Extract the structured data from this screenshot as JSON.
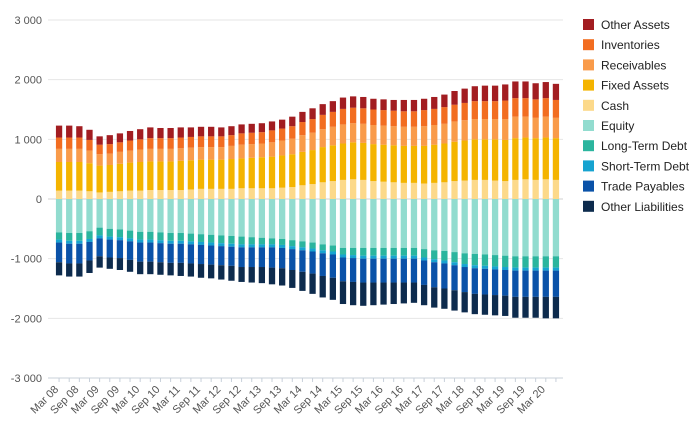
{
  "chart_data": {
    "type": "bar",
    "stacked": true,
    "title": "",
    "xlabel": "",
    "ylabel": "",
    "ylim": [
      -3000,
      3000
    ],
    "y_ticks": [
      3000,
      2000,
      1000,
      0,
      -1000,
      -2000,
      -3000
    ],
    "y_tick_labels": [
      "3 000",
      "2 000",
      "1 000",
      "0",
      "-1 000",
      "-2 000",
      "-3 000"
    ],
    "grid": "horizontal",
    "legend_position": "right",
    "categories": [
      "Mar 08",
      "Jun 08",
      "Sep 08",
      "Dec 08",
      "Mar 09",
      "Jun 09",
      "Sep 09",
      "Dec 09",
      "Mar 10",
      "Jun 10",
      "Sep 10",
      "Dec 10",
      "Mar 11",
      "Jun 11",
      "Sep 11",
      "Dec 11",
      "Mar 12",
      "Jun 12",
      "Sep 12",
      "Dec 12",
      "Mar 13",
      "Jun 13",
      "Sep 13",
      "Dec 13",
      "Mar 14",
      "Jun 14",
      "Sep 14",
      "Dec 14",
      "Mar 15",
      "Jun 15",
      "Sep 15",
      "Dec 15",
      "Mar 16",
      "Jun 16",
      "Sep 16",
      "Dec 16",
      "Mar 17",
      "Jun 17",
      "Sep 17",
      "Dec 17",
      "Mar 18",
      "Jun 18",
      "Sep 18",
      "Dec 18",
      "Mar 19",
      "Jun 19",
      "Sep 19",
      "Dec 19",
      "Mar 20",
      "Jun 20"
    ],
    "x_tick_labels": [
      "Mar 08",
      "Sep 08",
      "Mar 09",
      "Sep 09",
      "Mar 10",
      "Sep 10",
      "Mar 11",
      "Sep 11",
      "Mar 12",
      "Sep 12",
      "Mar 13",
      "Sep 13",
      "Mar 14",
      "Sep 14",
      "Mar 15",
      "Sep 15",
      "Mar 16",
      "Sep 16",
      "Mar 17",
      "Sep 17",
      "Mar 18",
      "Sep 18",
      "Mar 19",
      "Sep 19",
      "Mar 20"
    ],
    "assets": [
      {
        "name": "Cash",
        "color": "#fcd98a",
        "values": [
          140,
          140,
          140,
          130,
          110,
          120,
          130,
          140,
          140,
          150,
          150,
          150,
          150,
          160,
          170,
          170,
          170,
          170,
          180,
          180,
          180,
          180,
          190,
          200,
          230,
          250,
          280,
          300,
          320,
          330,
          320,
          300,
          290,
          280,
          270,
          270,
          260,
          270,
          280,
          300,
          310,
          320,
          320,
          310,
          300,
          320,
          330,
          320,
          330,
          320
        ]
      },
      {
        "name": "Fixed Assets",
        "color": "#f4b400",
        "values": [
          480,
          480,
          480,
          470,
          450,
          450,
          460,
          470,
          480,
          480,
          480,
          480,
          490,
          490,
          490,
          490,
          490,
          500,
          500,
          510,
          520,
          530,
          540,
          550,
          560,
          570,
          590,
          600,
          610,
          620,
          620,
          620,
          620,
          620,
          620,
          620,
          630,
          640,
          650,
          660,
          670,
          680,
          680,
          690,
          690,
          700,
          700,
          700,
          700,
          700
        ]
      },
      {
        "name": "Receivables",
        "color": "#f99b4a",
        "values": [
          220,
          220,
          220,
          210,
          190,
          190,
          200,
          200,
          210,
          210,
          210,
          210,
          210,
          210,
          210,
          210,
          210,
          220,
          230,
          230,
          230,
          240,
          250,
          260,
          280,
          290,
          300,
          310,
          320,
          320,
          320,
          320,
          320,
          320,
          320,
          320,
          330,
          330,
          330,
          340,
          340,
          340,
          340,
          340,
          350,
          360,
          350,
          340,
          350,
          340
        ]
      },
      {
        "name": "Inventories",
        "color": "#f26d21",
        "values": [
          190,
          190,
          190,
          180,
          160,
          160,
          160,
          170,
          170,
          180,
          180,
          180,
          180,
          180,
          180,
          180,
          180,
          180,
          190,
          190,
          190,
          200,
          200,
          210,
          220,
          230,
          240,
          250,
          260,
          260,
          260,
          260,
          260,
          260,
          260,
          260,
          270,
          270,
          280,
          280,
          290,
          300,
          300,
          300,
          310,
          310,
          310,
          310,
          310,
          300
        ]
      },
      {
        "name": "Other Assets",
        "color": "#a21d21",
        "values": [
          200,
          200,
          190,
          170,
          140,
          150,
          150,
          160,
          170,
          180,
          170,
          170,
          170,
          160,
          160,
          160,
          150,
          150,
          150,
          150,
          150,
          150,
          150,
          160,
          170,
          180,
          180,
          180,
          190,
          190,
          190,
          180,
          180,
          180,
          190,
          190,
          190,
          200,
          210,
          230,
          240,
          250,
          260,
          260,
          270,
          280,
          280,
          270,
          270,
          270
        ]
      }
    ],
    "liabilities": [
      {
        "name": "Equity",
        "color": "#92dccf",
        "values": [
          -560,
          -570,
          -570,
          -540,
          -480,
          -500,
          -510,
          -530,
          -550,
          -550,
          -560,
          -570,
          -570,
          -580,
          -590,
          -600,
          -610,
          -620,
          -630,
          -640,
          -650,
          -660,
          -670,
          -690,
          -710,
          -730,
          -760,
          -780,
          -820,
          -820,
          -820,
          -820,
          -820,
          -820,
          -820,
          -820,
          -840,
          -860,
          -870,
          -890,
          -910,
          -920,
          -930,
          -940,
          -950,
          -960,
          -960,
          -960,
          -960,
          -960
        ]
      },
      {
        "name": "Long-Term Debt",
        "color": "#2bb59e",
        "values": [
          -120,
          -130,
          -130,
          -130,
          -130,
          -130,
          -130,
          -130,
          -130,
          -130,
          -130,
          -130,
          -130,
          -130,
          -130,
          -130,
          -130,
          -130,
          -130,
          -120,
          -110,
          -100,
          -100,
          -100,
          -100,
          -100,
          -100,
          -100,
          -110,
          -120,
          -130,
          -130,
          -130,
          -130,
          -130,
          -130,
          -140,
          -150,
          -160,
          -170,
          -180,
          -190,
          -190,
          -190,
          -190,
          -190,
          -190,
          -190,
          -190,
          -190
        ]
      },
      {
        "name": "Short-Term Debt",
        "color": "#16a3d0",
        "values": [
          -50,
          -50,
          -50,
          -50,
          -50,
          -50,
          -50,
          -50,
          -50,
          -50,
          -50,
          -50,
          -50,
          -50,
          -50,
          -50,
          -50,
          -50,
          -50,
          -50,
          -50,
          -50,
          -50,
          -50,
          -50,
          -50,
          -50,
          -50,
          -50,
          -50,
          -50,
          -50,
          -50,
          -50,
          -50,
          -50,
          -50,
          -50,
          -50,
          -50,
          -50,
          -50,
          -50,
          -50,
          -50,
          -50,
          -50,
          -50,
          -50,
          -50
        ]
      },
      {
        "name": "Trade Payables",
        "color": "#0a52a8",
        "values": [
          -330,
          -330,
          -330,
          -310,
          -300,
          -300,
          -300,
          -310,
          -320,
          -320,
          -320,
          -320,
          -320,
          -320,
          -320,
          -320,
          -320,
          -320,
          -330,
          -330,
          -330,
          -340,
          -340,
          -350,
          -360,
          -370,
          -380,
          -390,
          -400,
          -400,
          -400,
          -400,
          -400,
          -400,
          -400,
          -400,
          -410,
          -420,
          -420,
          -420,
          -420,
          -430,
          -430,
          -430,
          -430,
          -440,
          -440,
          -440,
          -440,
          -440
        ]
      },
      {
        "name": "Other Liabilities",
        "color": "#0d2b4d",
        "values": [
          -220,
          -220,
          -220,
          -210,
          -190,
          -190,
          -200,
          -200,
          -210,
          -210,
          -210,
          -210,
          -220,
          -220,
          -230,
          -230,
          -240,
          -250,
          -250,
          -260,
          -270,
          -280,
          -290,
          -300,
          -320,
          -340,
          -360,
          -370,
          -380,
          -390,
          -390,
          -380,
          -370,
          -360,
          -350,
          -340,
          -340,
          -340,
          -340,
          -340,
          -340,
          -340,
          -340,
          -340,
          -340,
          -350,
          -350,
          -350,
          -360,
          -360
        ]
      }
    ],
    "legend": [
      {
        "name": "Other Assets",
        "color": "#a21d21"
      },
      {
        "name": "Inventories",
        "color": "#f26d21"
      },
      {
        "name": "Receivables",
        "color": "#f99b4a"
      },
      {
        "name": "Fixed Assets",
        "color": "#f4b400"
      },
      {
        "name": "Cash",
        "color": "#fcd98a"
      },
      {
        "name": "Equity",
        "color": "#92dccf"
      },
      {
        "name": "Long-Term Debt",
        "color": "#2bb59e"
      },
      {
        "name": "Short-Term Debt",
        "color": "#16a3d0"
      },
      {
        "name": "Trade Payables",
        "color": "#0a52a8"
      },
      {
        "name": "Other Liabilities",
        "color": "#0d2b4d"
      }
    ]
  }
}
